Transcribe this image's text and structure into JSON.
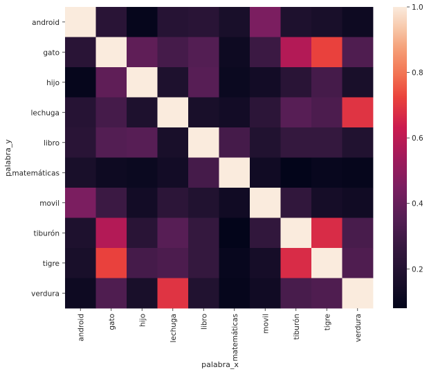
{
  "chart_data": {
    "type": "heatmap",
    "title": "",
    "xlabel": "palabra_x",
    "ylabel": "palabra_y",
    "x_categories": [
      "android",
      "gato",
      "hijo",
      "lechuga",
      "libro",
      "matemáticas",
      "movil",
      "tiburón",
      "tigre",
      "verdura"
    ],
    "y_categories": [
      "android",
      "gato",
      "hijo",
      "lechuga",
      "libro",
      "matemáticas",
      "movil",
      "tiburón",
      "tigre",
      "verdura"
    ],
    "values": [
      [
        1.0,
        0.22,
        0.09,
        0.21,
        0.22,
        0.16,
        0.45,
        0.18,
        0.16,
        0.12
      ],
      [
        0.22,
        1.0,
        0.38,
        0.31,
        0.35,
        0.12,
        0.28,
        0.58,
        0.72,
        0.34
      ],
      [
        0.09,
        0.38,
        1.0,
        0.18,
        0.36,
        0.11,
        0.14,
        0.22,
        0.31,
        0.16
      ],
      [
        0.21,
        0.31,
        0.18,
        1.0,
        0.16,
        0.14,
        0.23,
        0.36,
        0.33,
        0.69
      ],
      [
        0.22,
        0.35,
        0.36,
        0.16,
        1.0,
        0.31,
        0.19,
        0.26,
        0.26,
        0.19
      ],
      [
        0.16,
        0.12,
        0.11,
        0.14,
        0.31,
        1.0,
        0.13,
        0.08,
        0.1,
        0.09
      ],
      [
        0.45,
        0.28,
        0.14,
        0.23,
        0.19,
        0.13,
        1.0,
        0.25,
        0.15,
        0.13
      ],
      [
        0.18,
        0.58,
        0.22,
        0.36,
        0.26,
        0.08,
        0.25,
        1.0,
        0.67,
        0.32
      ],
      [
        0.16,
        0.72,
        0.31,
        0.33,
        0.26,
        0.1,
        0.15,
        0.67,
        1.0,
        0.34
      ],
      [
        0.12,
        0.34,
        0.16,
        0.69,
        0.19,
        0.09,
        0.13,
        0.32,
        0.34,
        1.0
      ]
    ],
    "colorbar": {
      "vmin": 0.08,
      "vmax": 1.0,
      "ticks": [
        0.2,
        0.4,
        0.6,
        0.8,
        1.0
      ],
      "tick_labels": [
        "0.2",
        "0.4",
        "0.6",
        "0.8",
        "1.0"
      ],
      "colormap": "rocket"
    }
  }
}
